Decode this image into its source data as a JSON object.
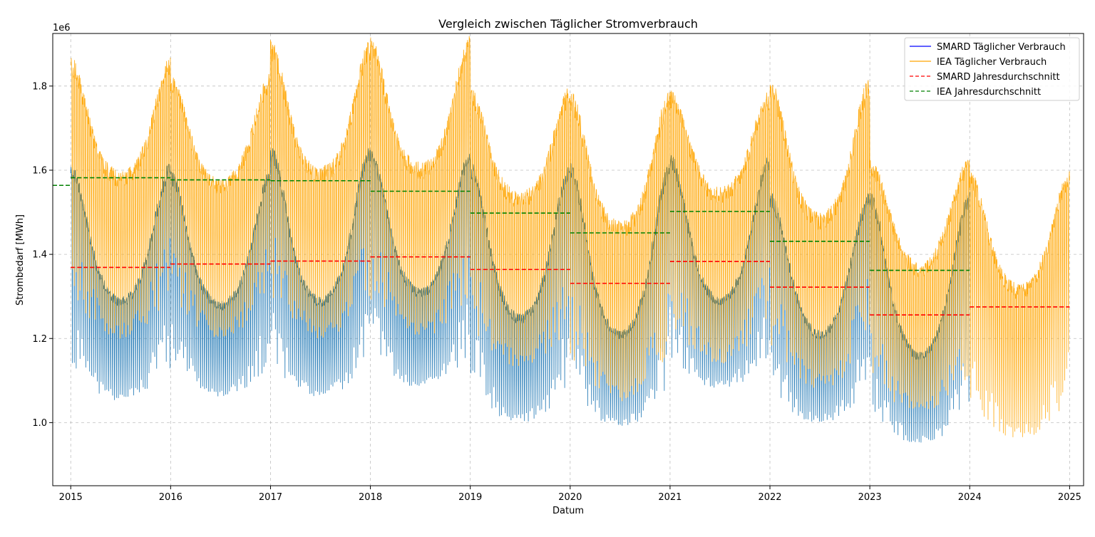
{
  "chart_data": {
    "type": "line",
    "title": "Vergleich zwischen Täglicher Stromverbrauch",
    "xlabel": "Datum",
    "ylabel": "Strombedarf [MWh]",
    "y_multiplier_label": "1e6",
    "xlim": [
      2014.82,
      2025.14
    ],
    "ylim": [
      0.85,
      1.925
    ],
    "x_ticks": [
      2015,
      2016,
      2017,
      2018,
      2019,
      2020,
      2021,
      2022,
      2023,
      2024,
      2025
    ],
    "x_tick_labels": [
      "2015",
      "2016",
      "2017",
      "2018",
      "2019",
      "2020",
      "2021",
      "2022",
      "2023",
      "2024",
      "2025"
    ],
    "y_ticks": [
      1.0,
      1.2,
      1.4,
      1.6,
      1.8
    ],
    "y_tick_labels": [
      "1.0",
      "1.2",
      "1.4",
      "1.6",
      "1.8"
    ],
    "grid": true,
    "legend_position": "top-right",
    "colors": {
      "smard_daily": "#1f77b4",
      "smard_legend": "#0000ff",
      "iea_daily": "#ffa500",
      "smard_avg": "#ff0000",
      "iea_avg": "#008000"
    },
    "legend": [
      "SMARD Täglicher Verbrauch",
      "IEA Täglicher Verbrauch",
      "SMARD Jahresdurchschnitt",
      "IEA Jahresdurchschnitt"
    ],
    "series": [
      {
        "name": "SMARD Täglicher Verbrauch",
        "kind": "daily",
        "x_range": [
          2015.0,
          2024.0
        ],
        "years": [
          2015,
          2016,
          2017,
          2018,
          2019,
          2020,
          2021,
          2022,
          2023
        ],
        "winter_peak": [
          1.62,
          1.6,
          1.66,
          1.65,
          1.62,
          1.62,
          1.64,
          1.55,
          1.55
        ],
        "summer_low": [
          1.05,
          1.06,
          1.06,
          1.08,
          1.0,
          0.99,
          1.08,
          1.0,
          0.95
        ],
        "weekday_high": [
          1.45,
          1.43,
          1.46,
          1.48,
          1.44,
          1.4,
          1.47,
          1.4,
          1.35
        ],
        "summer_weekday_high": [
          1.3,
          1.29,
          1.3,
          1.32,
          1.26,
          1.22,
          1.3,
          1.22,
          1.17
        ]
      },
      {
        "name": "IEA Täglicher Verbrauch",
        "kind": "daily",
        "x_range": [
          2015.0,
          2025.0
        ],
        "years": [
          2015,
          2016,
          2017,
          2018,
          2019,
          2020,
          2021,
          2022,
          2023,
          2024
        ],
        "winter_peak": [
          1.87,
          1.83,
          1.91,
          1.92,
          1.8,
          1.79,
          1.79,
          1.82,
          1.63,
          1.6
        ],
        "summer_low": [
          1.2,
          1.2,
          1.2,
          1.2,
          1.13,
          1.05,
          1.14,
          1.08,
          1.02,
          0.96
        ],
        "weekday_high": [
          1.72,
          1.7,
          1.73,
          1.74,
          1.66,
          1.62,
          1.69,
          1.64,
          1.54,
          1.46
        ],
        "summer_weekday_high": [
          1.6,
          1.58,
          1.61,
          1.62,
          1.55,
          1.48,
          1.56,
          1.5,
          1.38,
          1.33
        ]
      },
      {
        "name": "SMARD Jahresdurchschnitt",
        "kind": "step",
        "segments": [
          {
            "x": [
              2015,
              2016
            ],
            "y": 1.369
          },
          {
            "x": [
              2016,
              2017
            ],
            "y": 1.377
          },
          {
            "x": [
              2017,
              2018
            ],
            "y": 1.384
          },
          {
            "x": [
              2018,
              2019
            ],
            "y": 1.394
          },
          {
            "x": [
              2019,
              2020
            ],
            "y": 1.364
          },
          {
            "x": [
              2020,
              2021
            ],
            "y": 1.331
          },
          {
            "x": [
              2021,
              2022
            ],
            "y": 1.383
          },
          {
            "x": [
              2022,
              2023
            ],
            "y": 1.322
          },
          {
            "x": [
              2023,
              2024
            ],
            "y": 1.256
          },
          {
            "x": [
              2024,
              2025
            ],
            "y": 1.275
          }
        ]
      },
      {
        "name": "IEA Jahresdurchschnitt",
        "kind": "step",
        "segments": [
          {
            "x": [
              2014.82,
              2015
            ],
            "y": 1.564
          },
          {
            "x": [
              2015,
              2016
            ],
            "y": 1.582
          },
          {
            "x": [
              2016,
              2017
            ],
            "y": 1.577
          },
          {
            "x": [
              2017,
              2018
            ],
            "y": 1.575
          },
          {
            "x": [
              2018,
              2019
            ],
            "y": 1.55
          },
          {
            "x": [
              2019,
              2020
            ],
            "y": 1.498
          },
          {
            "x": [
              2020,
              2021
            ],
            "y": 1.451
          },
          {
            "x": [
              2021,
              2022
            ],
            "y": 1.502
          },
          {
            "x": [
              2022,
              2023
            ],
            "y": 1.431
          },
          {
            "x": [
              2023,
              2024
            ],
            "y": 1.362
          }
        ]
      }
    ]
  }
}
